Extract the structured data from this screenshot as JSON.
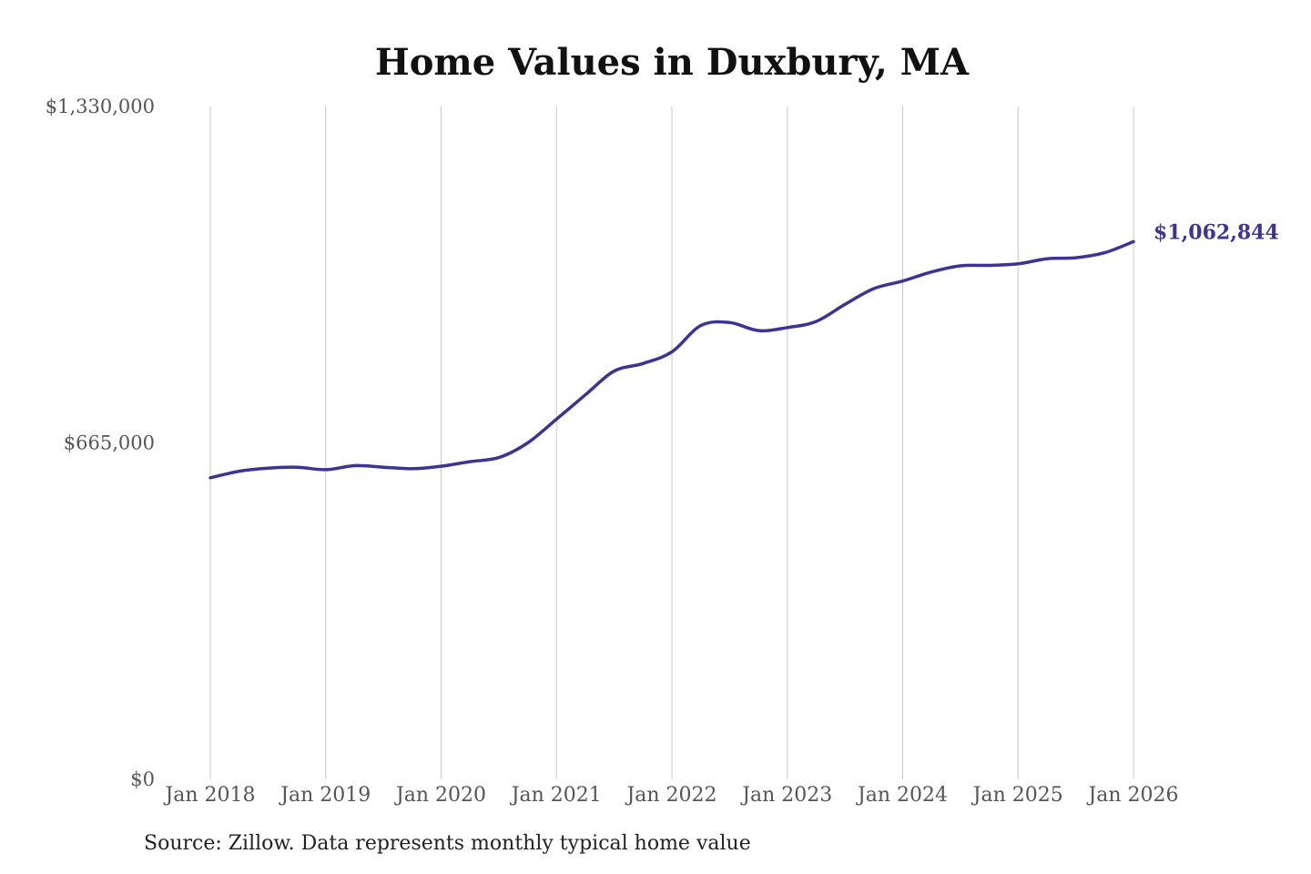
{
  "chart_data": {
    "type": "line",
    "title": "Home Values in Duxbury, MA",
    "xlabel": "",
    "ylabel": "",
    "ylim": [
      0,
      1330000
    ],
    "yticks": [
      {
        "value": 0,
        "label": "$0"
      },
      {
        "value": 665000,
        "label": "$665,000"
      },
      {
        "value": 1330000,
        "label": "$1,330,000"
      }
    ],
    "xticks": [
      "Jan 2018",
      "Jan 2019",
      "Jan 2020",
      "Jan 2021",
      "Jan 2022",
      "Jan 2023",
      "Jan 2024",
      "Jan 2025",
      "Jan 2026"
    ],
    "grid": "vertical",
    "series": [
      {
        "color": "#3b3494",
        "points": [
          {
            "x": "2018-01",
            "y": 596000
          },
          {
            "x": "2018-04",
            "y": 609000
          },
          {
            "x": "2018-07",
            "y": 615000
          },
          {
            "x": "2018-10",
            "y": 617000
          },
          {
            "x": "2019-01",
            "y": 612000
          },
          {
            "x": "2019-04",
            "y": 620000
          },
          {
            "x": "2019-07",
            "y": 617000
          },
          {
            "x": "2019-10",
            "y": 614000
          },
          {
            "x": "2020-01",
            "y": 619000
          },
          {
            "x": "2020-04",
            "y": 628000
          },
          {
            "x": "2020-07",
            "y": 636000
          },
          {
            "x": "2020-10",
            "y": 665000
          },
          {
            "x": "2021-01",
            "y": 712000
          },
          {
            "x": "2021-04",
            "y": 760000
          },
          {
            "x": "2021-07",
            "y": 807000
          },
          {
            "x": "2021-10",
            "y": 822000
          },
          {
            "x": "2022-01",
            "y": 845000
          },
          {
            "x": "2022-04",
            "y": 897000
          },
          {
            "x": "2022-07",
            "y": 903000
          },
          {
            "x": "2022-10",
            "y": 887000
          },
          {
            "x": "2023-01",
            "y": 893000
          },
          {
            "x": "2023-04",
            "y": 905000
          },
          {
            "x": "2023-07",
            "y": 939000
          },
          {
            "x": "2023-10",
            "y": 970000
          },
          {
            "x": "2024-01",
            "y": 985000
          },
          {
            "x": "2024-04",
            "y": 1003000
          },
          {
            "x": "2024-07",
            "y": 1015000
          },
          {
            "x": "2024-10",
            "y": 1016000
          },
          {
            "x": "2025-01",
            "y": 1019000
          },
          {
            "x": "2025-04",
            "y": 1029000
          },
          {
            "x": "2025-07",
            "y": 1031000
          },
          {
            "x": "2025-10",
            "y": 1041000
          },
          {
            "x": "2026-01",
            "y": 1062844
          }
        ]
      }
    ],
    "end_label": "$1,062,844"
  },
  "source": "Source: Zillow. Data represents monthly typical home value"
}
